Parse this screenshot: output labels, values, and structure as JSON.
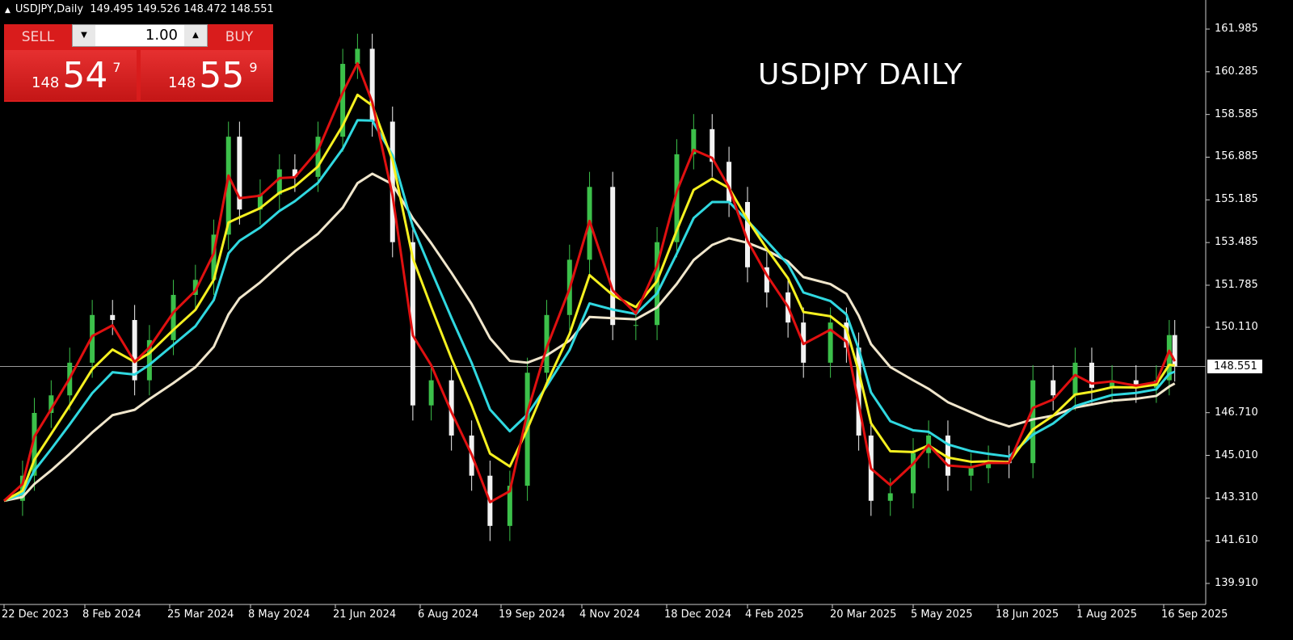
{
  "header": {
    "symbol_timeframe": "USDJPY,Daily",
    "ohlc": "149.495 149.526 148.472 148.551"
  },
  "trade_panel": {
    "sell_label": "SELL",
    "buy_label": "BUY",
    "lot_value": "1.00",
    "sell_price": {
      "prefix": "148",
      "main": "54",
      "point": "7"
    },
    "buy_price": {
      "prefix": "148",
      "main": "55",
      "point": "9"
    }
  },
  "chart_data": {
    "type": "candlestick",
    "title": "USDJPY DAILY",
    "ylim": [
      139.91,
      161.985
    ],
    "y_ticks": [
      "161.985",
      "160.285",
      "158.585",
      "156.885",
      "155.185",
      "153.485",
      "151.785",
      "150.110",
      "148.551",
      "146.710",
      "145.010",
      "143.310",
      "141.610",
      "139.910"
    ],
    "x_ticks": [
      "22 Dec 2023",
      "8 Feb 2024",
      "25 Mar 2024",
      "8 May 2024",
      "21 Jun 2024",
      "6 Aug 2024",
      "19 Sep 2024",
      "4 Nov 2024",
      "18 Dec 2024",
      "4 Feb 2025",
      "20 Mar 2025",
      "5 May 2025",
      "18 Jun 2025",
      "1 Aug 2025",
      "16 Sep 2025"
    ],
    "current_price": "148.551",
    "grid": false,
    "colors": {
      "up": "#3cc04a",
      "down": "#f2f2f2",
      "ma_fast": "#e01010",
      "ma_mid": "#f5f020",
      "ma_slow": "#30d8e0",
      "ma_long": "#f0e6cc",
      "price_line": "#9a9a9a"
    },
    "closes": [
      [
        "2023-12-22",
        143.2
      ],
      [
        "2024-01-02",
        144.2
      ],
      [
        "2024-01-09",
        146.7
      ],
      [
        "2024-01-19",
        147.4
      ],
      [
        "2024-01-30",
        148.7
      ],
      [
        "2024-02-12",
        150.6
      ],
      [
        "2024-02-23",
        150.4
      ],
      [
        "2024-03-06",
        148.0
      ],
      [
        "2024-03-14",
        149.6
      ],
      [
        "2024-03-27",
        151.4
      ],
      [
        "2024-04-08",
        152.0
      ],
      [
        "2024-04-18",
        153.8
      ],
      [
        "2024-04-26",
        157.7
      ],
      [
        "2024-05-02",
        154.8
      ],
      [
        "2024-05-13",
        155.4
      ],
      [
        "2024-05-23",
        156.4
      ],
      [
        "2024-05-31",
        156.1
      ],
      [
        "2024-06-12",
        157.7
      ],
      [
        "2024-06-25",
        160.6
      ],
      [
        "2024-07-03",
        161.2
      ],
      [
        "2024-07-11",
        158.3
      ],
      [
        "2024-07-22",
        153.5
      ],
      [
        "2024-08-02",
        147.0
      ],
      [
        "2024-08-12",
        148.0
      ],
      [
        "2024-08-23",
        145.8
      ],
      [
        "2024-09-03",
        144.2
      ],
      [
        "2024-09-13",
        142.2
      ],
      [
        "2024-09-24",
        143.8
      ],
      [
        "2024-10-04",
        148.3
      ],
      [
        "2024-10-15",
        150.6
      ],
      [
        "2024-10-28",
        152.8
      ],
      [
        "2024-11-08",
        155.7
      ],
      [
        "2024-11-20",
        150.2
      ],
      [
        "2024-12-02",
        150.2
      ],
      [
        "2024-12-13",
        153.5
      ],
      [
        "2024-12-24",
        157.0
      ],
      [
        "2025-01-03",
        158.0
      ],
      [
        "2025-01-14",
        156.7
      ],
      [
        "2025-01-24",
        155.1
      ],
      [
        "2025-02-04",
        152.5
      ],
      [
        "2025-02-14",
        151.5
      ],
      [
        "2025-02-25",
        150.3
      ],
      [
        "2025-03-05",
        148.7
      ],
      [
        "2025-03-19",
        150.3
      ],
      [
        "2025-03-28",
        149.3
      ],
      [
        "2025-04-04",
        145.8
      ],
      [
        "2025-04-11",
        143.2
      ],
      [
        "2025-04-22",
        143.5
      ],
      [
        "2025-05-05",
        145.1
      ],
      [
        "2025-05-13",
        145.8
      ],
      [
        "2025-05-23",
        144.2
      ],
      [
        "2025-06-04",
        144.5
      ],
      [
        "2025-06-13",
        144.8
      ],
      [
        "2025-06-24",
        144.7
      ],
      [
        "2025-07-07",
        148.0
      ],
      [
        "2025-07-18",
        147.4
      ],
      [
        "2025-07-30",
        148.7
      ],
      [
        "2025-08-08",
        147.7
      ],
      [
        "2025-08-19",
        148.0
      ],
      [
        "2025-09-01",
        147.7
      ],
      [
        "2025-09-12",
        148.0
      ],
      [
        "2025-09-19",
        149.8
      ],
      [
        "2025-09-22",
        148.551
      ]
    ]
  }
}
